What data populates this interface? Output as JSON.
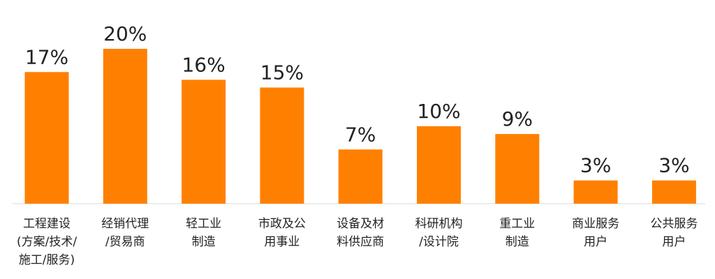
{
  "chart_data": {
    "type": "bar",
    "color": "#ff8000",
    "categories": [
      [
        "工程建设",
        "(方案/技术/",
        "施工/服务)"
      ],
      [
        "经销代理",
        "/贸易商"
      ],
      [
        "轻工业",
        "制造"
      ],
      [
        "市政及公",
        "用事业"
      ],
      [
        "设备及材",
        "料供应商"
      ],
      [
        "科研机构",
        "/设计院"
      ],
      [
        "重工业",
        "制造"
      ],
      [
        "商业服务",
        "用户"
      ],
      [
        "公共服务",
        "用户"
      ]
    ],
    "values": [
      17,
      20,
      16,
      15,
      7,
      10,
      9,
      3,
      3
    ],
    "value_labels": [
      "17%",
      "20%",
      "16%",
      "15%",
      "7%",
      "10%",
      "9%",
      "3%",
      "3%"
    ]
  }
}
